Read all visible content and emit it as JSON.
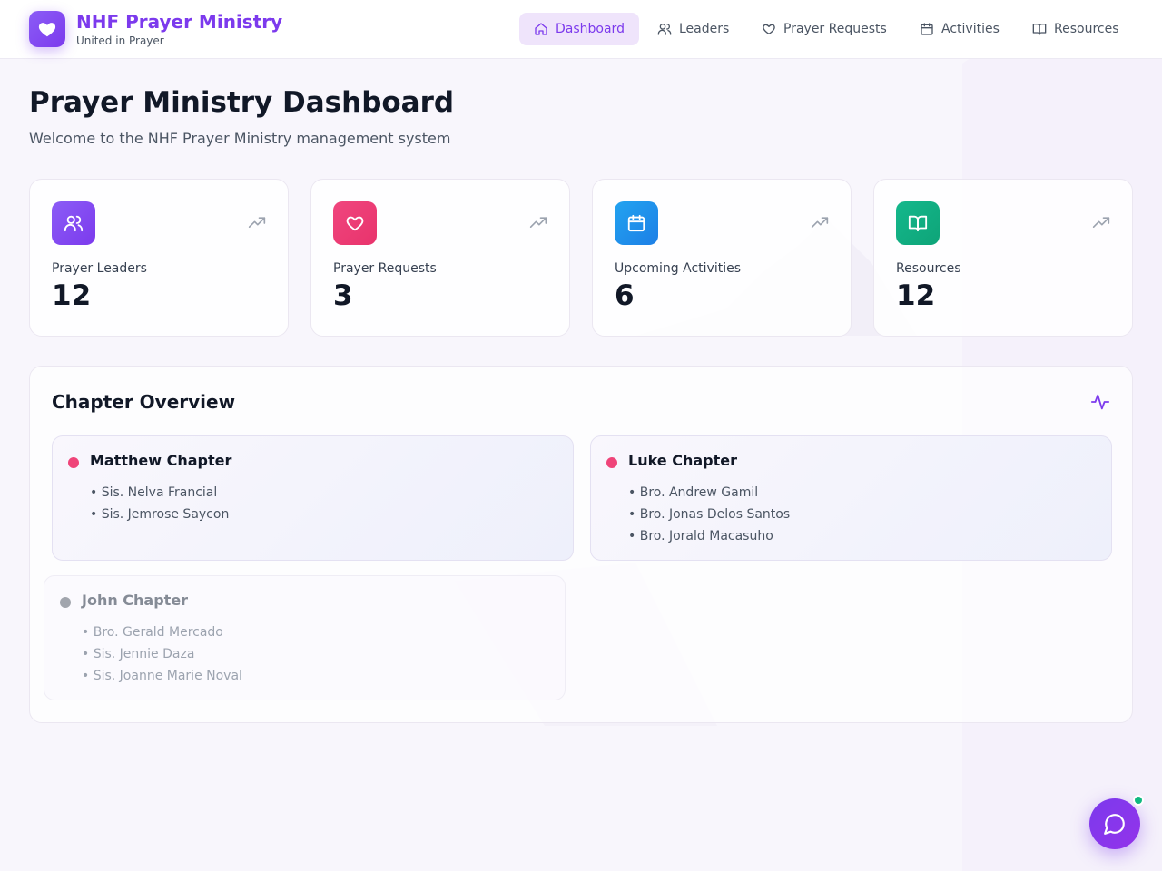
{
  "app": {
    "title": "NHF Prayer Ministry",
    "subtitle": "United in Prayer",
    "logo_icon": "heart-icon",
    "accent_color": "#7c3aed"
  },
  "nav": {
    "items": [
      {
        "label": "Dashboard",
        "icon": "home-icon",
        "active": true
      },
      {
        "label": "Leaders",
        "icon": "users-icon",
        "active": false
      },
      {
        "label": "Prayer Requests",
        "icon": "heart-icon",
        "active": false
      },
      {
        "label": "Activities",
        "icon": "calendar-icon",
        "active": false
      },
      {
        "label": "Resources",
        "icon": "book-open-icon",
        "active": false
      }
    ]
  },
  "page": {
    "title": "Prayer Ministry Dashboard",
    "subtitle": "Welcome to the NHF Prayer Ministry management system"
  },
  "stats": [
    {
      "label": "Prayer Leaders",
      "value": "12",
      "icon": "users-icon",
      "color": "#8b5cf6"
    },
    {
      "label": "Prayer Requests",
      "value": "3",
      "icon": "heart-icon",
      "color": "#ef4479"
    },
    {
      "label": "Upcoming Activities",
      "value": "6",
      "icon": "calendar-icon",
      "color": "#1e90ee"
    },
    {
      "label": "Resources",
      "value": "12",
      "icon": "book-open-icon",
      "color": "#10b981"
    }
  ],
  "overview": {
    "title": "Chapter Overview",
    "icon": "activity-pulse-icon",
    "chapters": [
      {
        "name": "Matthew Chapter",
        "dot_color": "#ef4479",
        "members": [
          "• Sis. Nelva Francial",
          "• Sis. Jemrose Saycon"
        ]
      },
      {
        "name": "Luke Chapter",
        "dot_color": "#ef4479",
        "members": [
          "• Bro. Andrew Gamil",
          "• Bro. Jonas Delos Santos",
          "• Bro. Jorald Macasuho"
        ]
      },
      {
        "name": "John Chapter",
        "dot_color": "#a1a5ad",
        "members": [
          "• Bro. Gerald Mercado",
          "• Sis. Jennie Daza",
          "• Sis. Joanne Marie Noval"
        ]
      }
    ]
  },
  "chat": {
    "icon": "chat-bubble-icon",
    "status_color": "#10b981"
  }
}
